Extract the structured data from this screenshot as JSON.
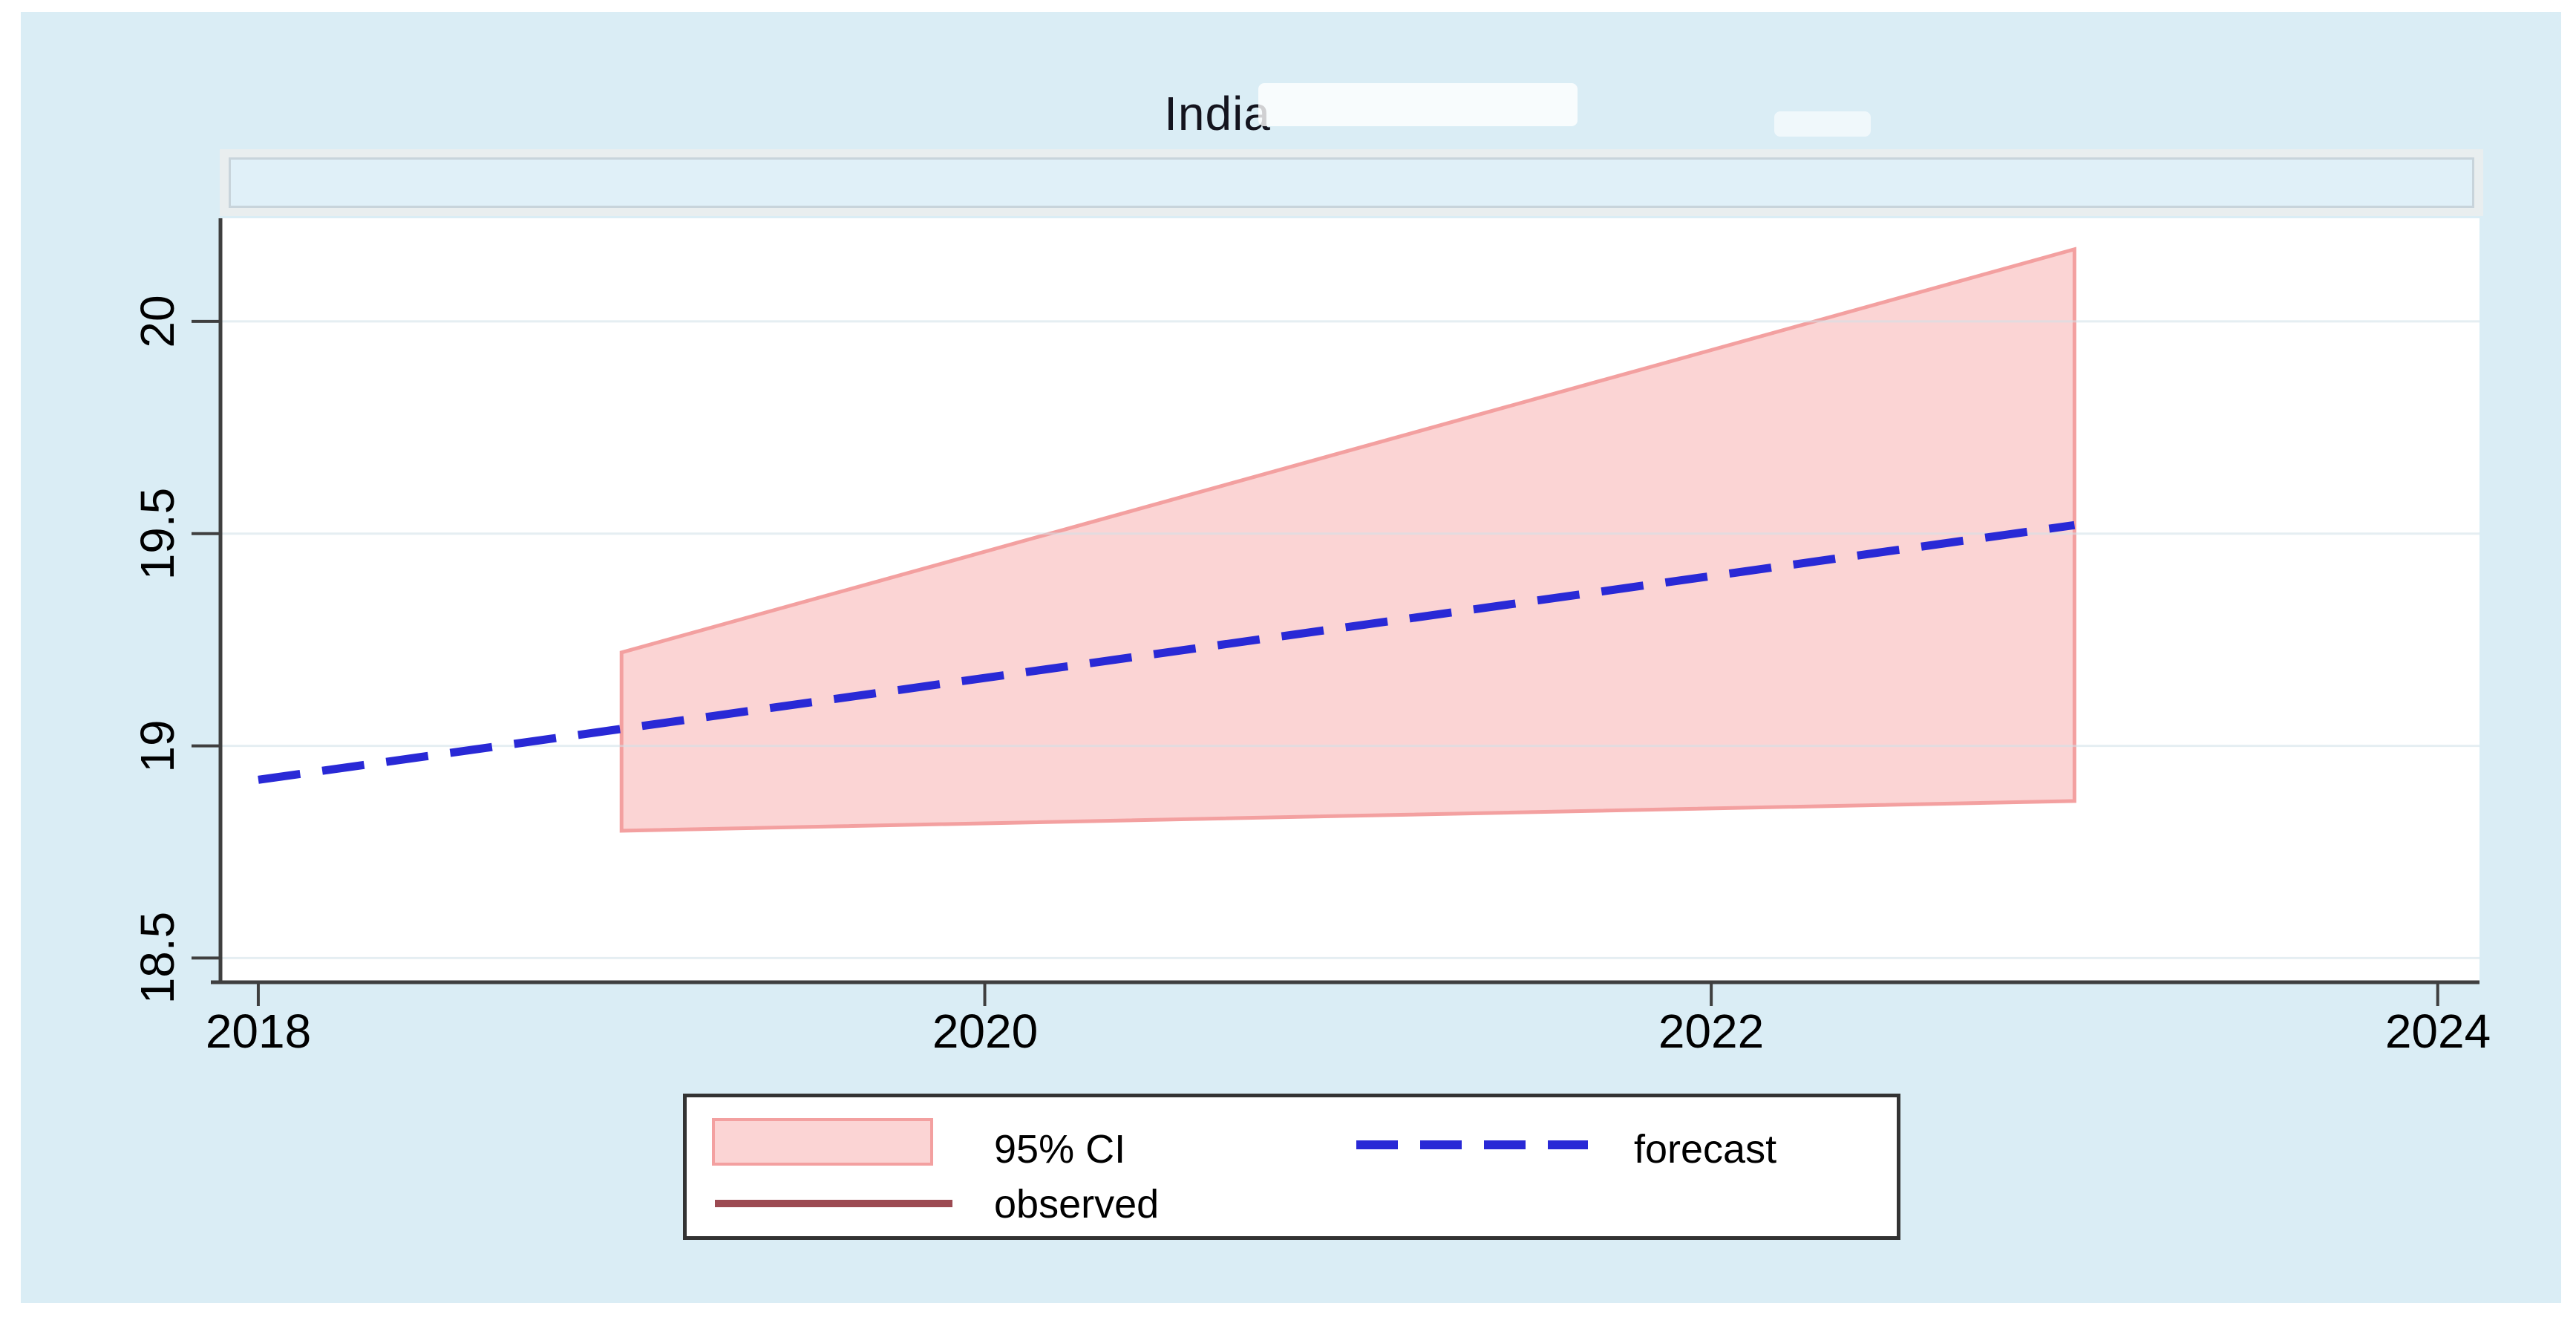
{
  "title": {
    "text": "India"
  },
  "colors": {
    "page_background": "#ffffff",
    "canvas_background": "#daedf5",
    "plot_background": "#ffffff",
    "axis": "#3f3f3f",
    "gridline": "#cfe0e8",
    "title_text": "#14141e",
    "tick_label": "#000000",
    "ci_fill": "#fbd4d4",
    "ci_border": "#f3a0a0",
    "forecast_blue": "#2929d6",
    "observed_maroon": "#9c4a52",
    "legend_border": "#333333",
    "legend_background": "#ffffff",
    "strip_background": "#e9eeef",
    "strip_box_fill": "#e0f0f8",
    "strip_box_border": "#c8d4db"
  },
  "legend": {
    "items": [
      {
        "label": "95% CI"
      },
      {
        "label": "forecast"
      },
      {
        "label": "observed"
      }
    ]
  },
  "chart_data": {
    "type": "area",
    "title": "India",
    "xlabel": "",
    "ylabel": "",
    "x_ticks": [
      2018,
      2020,
      2022,
      2024
    ],
    "x_tick_labels": [
      "2018",
      "2020",
      "2022",
      "2024"
    ],
    "y_ticks": [
      18.5,
      19,
      19.5,
      20
    ],
    "y_tick_labels": [
      "18.5",
      "19",
      "19.5",
      "20"
    ],
    "xlim": [
      2017.9,
      2024.115
    ],
    "ylim": [
      18.443,
      20.243
    ],
    "grid": "horizontal",
    "legend_position": "bottom-center",
    "ci_band": {
      "name": "95% CI",
      "x": [
        2019,
        2023
      ],
      "lower": [
        18.8,
        18.87
      ],
      "upper": [
        19.22,
        20.17
      ]
    },
    "series": [
      {
        "name": "forecast",
        "style": "dashed",
        "x": [
          2018,
          2023
        ],
        "y": [
          18.92,
          19.52
        ]
      }
    ]
  }
}
